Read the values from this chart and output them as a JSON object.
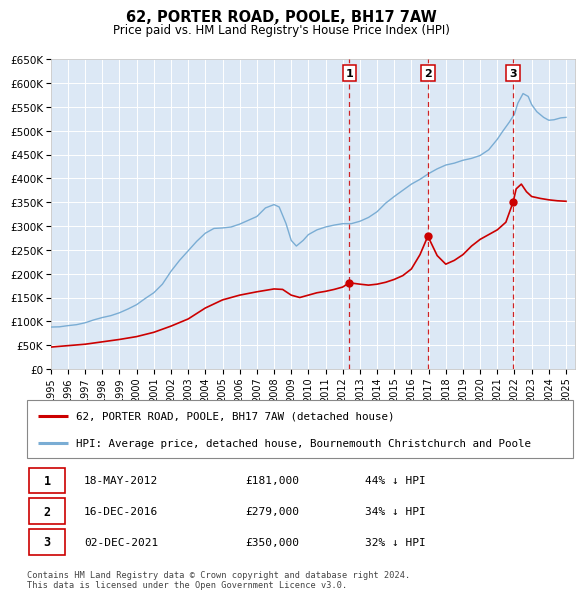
{
  "title": "62, PORTER ROAD, POOLE, BH17 7AW",
  "subtitle": "Price paid vs. HM Land Registry's House Price Index (HPI)",
  "ylim": [
    0,
    650000
  ],
  "yticks": [
    0,
    50000,
    100000,
    150000,
    200000,
    250000,
    300000,
    350000,
    400000,
    450000,
    500000,
    550000,
    600000,
    650000
  ],
  "ytick_labels": [
    "£0",
    "£50K",
    "£100K",
    "£150K",
    "£200K",
    "£250K",
    "£300K",
    "£350K",
    "£400K",
    "£450K",
    "£500K",
    "£550K",
    "£600K",
    "£650K"
  ],
  "xlim_start": 1995.0,
  "xlim_end": 2025.5,
  "bg_color": "#dce8f5",
  "grid_color": "#ffffff",
  "red_line_color": "#cc0000",
  "blue_line_color": "#7aadd4",
  "vline_color": "#cc0000",
  "transactions": [
    {
      "date_num": 2012.38,
      "price": 181000,
      "label": "1"
    },
    {
      "date_num": 2016.96,
      "price": 279000,
      "label": "2"
    },
    {
      "date_num": 2021.92,
      "price": 350000,
      "label": "3"
    }
  ],
  "legend_entries": [
    "62, PORTER ROAD, POOLE, BH17 7AW (detached house)",
    "HPI: Average price, detached house, Bournemouth Christchurch and Poole"
  ],
  "table_rows": [
    {
      "num": "1",
      "date": "18-MAY-2012",
      "price": "£181,000",
      "hpi": "44% ↓ HPI"
    },
    {
      "num": "2",
      "date": "16-DEC-2016",
      "price": "£279,000",
      "hpi": "34% ↓ HPI"
    },
    {
      "num": "3",
      "date": "02-DEC-2021",
      "price": "£350,000",
      "hpi": "32% ↓ HPI"
    }
  ],
  "footer": "Contains HM Land Registry data © Crown copyright and database right 2024.\nThis data is licensed under the Open Government Licence v3.0.",
  "hpi_data": [
    [
      1995.0,
      88000
    ],
    [
      1995.5,
      88500
    ],
    [
      1996.0,
      91000
    ],
    [
      1996.5,
      93000
    ],
    [
      1997.0,
      97000
    ],
    [
      1997.5,
      103000
    ],
    [
      1998.0,
      108000
    ],
    [
      1998.5,
      112000
    ],
    [
      1999.0,
      118000
    ],
    [
      1999.5,
      126000
    ],
    [
      2000.0,
      135000
    ],
    [
      2000.5,
      148000
    ],
    [
      2001.0,
      160000
    ],
    [
      2001.5,
      178000
    ],
    [
      2002.0,
      205000
    ],
    [
      2002.5,
      228000
    ],
    [
      2003.0,
      248000
    ],
    [
      2003.5,
      268000
    ],
    [
      2004.0,
      285000
    ],
    [
      2004.5,
      295000
    ],
    [
      2005.0,
      296000
    ],
    [
      2005.5,
      298000
    ],
    [
      2006.0,
      304000
    ],
    [
      2006.5,
      312000
    ],
    [
      2007.0,
      320000
    ],
    [
      2007.5,
      338000
    ],
    [
      2008.0,
      345000
    ],
    [
      2008.3,
      340000
    ],
    [
      2008.7,
      305000
    ],
    [
      2009.0,
      270000
    ],
    [
      2009.3,
      258000
    ],
    [
      2009.7,
      270000
    ],
    [
      2010.0,
      282000
    ],
    [
      2010.5,
      292000
    ],
    [
      2011.0,
      298000
    ],
    [
      2011.5,
      302000
    ],
    [
      2012.0,
      305000
    ],
    [
      2012.5,
      305000
    ],
    [
      2013.0,
      310000
    ],
    [
      2013.5,
      318000
    ],
    [
      2014.0,
      330000
    ],
    [
      2014.5,
      348000
    ],
    [
      2015.0,
      362000
    ],
    [
      2015.5,
      375000
    ],
    [
      2016.0,
      388000
    ],
    [
      2016.5,
      398000
    ],
    [
      2017.0,
      410000
    ],
    [
      2017.5,
      420000
    ],
    [
      2018.0,
      428000
    ],
    [
      2018.5,
      432000
    ],
    [
      2019.0,
      438000
    ],
    [
      2019.5,
      442000
    ],
    [
      2020.0,
      448000
    ],
    [
      2020.5,
      460000
    ],
    [
      2021.0,
      482000
    ],
    [
      2021.3,
      498000
    ],
    [
      2021.7,
      518000
    ],
    [
      2022.0,
      535000
    ],
    [
      2022.2,
      558000
    ],
    [
      2022.5,
      578000
    ],
    [
      2022.8,
      572000
    ],
    [
      2023.0,
      555000
    ],
    [
      2023.3,
      540000
    ],
    [
      2023.7,
      528000
    ],
    [
      2024.0,
      522000
    ],
    [
      2024.3,
      523000
    ],
    [
      2024.7,
      527000
    ],
    [
      2025.0,
      528000
    ]
  ],
  "red_data": [
    [
      1995.0,
      46000
    ],
    [
      1996.0,
      49000
    ],
    [
      1997.0,
      52000
    ],
    [
      1998.0,
      57000
    ],
    [
      1999.0,
      62000
    ],
    [
      2000.0,
      68000
    ],
    [
      2001.0,
      77000
    ],
    [
      2002.0,
      90000
    ],
    [
      2003.0,
      105000
    ],
    [
      2004.0,
      128000
    ],
    [
      2005.0,
      145000
    ],
    [
      2006.0,
      155000
    ],
    [
      2007.0,
      162000
    ],
    [
      2007.5,
      165000
    ],
    [
      2008.0,
      168000
    ],
    [
      2008.5,
      167000
    ],
    [
      2009.0,
      155000
    ],
    [
      2009.5,
      150000
    ],
    [
      2010.0,
      155000
    ],
    [
      2010.5,
      160000
    ],
    [
      2011.0,
      163000
    ],
    [
      2011.5,
      167000
    ],
    [
      2012.0,
      172000
    ],
    [
      2012.38,
      181000
    ],
    [
      2013.0,
      178000
    ],
    [
      2013.5,
      176000
    ],
    [
      2014.0,
      178000
    ],
    [
      2014.5,
      182000
    ],
    [
      2015.0,
      188000
    ],
    [
      2015.5,
      196000
    ],
    [
      2016.0,
      210000
    ],
    [
      2016.5,
      240000
    ],
    [
      2016.96,
      279000
    ],
    [
      2017.1,
      268000
    ],
    [
      2017.5,
      238000
    ],
    [
      2018.0,
      220000
    ],
    [
      2018.5,
      228000
    ],
    [
      2019.0,
      240000
    ],
    [
      2019.5,
      258000
    ],
    [
      2020.0,
      272000
    ],
    [
      2020.5,
      282000
    ],
    [
      2021.0,
      292000
    ],
    [
      2021.5,
      308000
    ],
    [
      2021.92,
      350000
    ],
    [
      2022.1,
      378000
    ],
    [
      2022.4,
      388000
    ],
    [
      2022.7,
      372000
    ],
    [
      2023.0,
      362000
    ],
    [
      2023.5,
      358000
    ],
    [
      2024.0,
      355000
    ],
    [
      2024.5,
      353000
    ],
    [
      2025.0,
      352000
    ]
  ]
}
